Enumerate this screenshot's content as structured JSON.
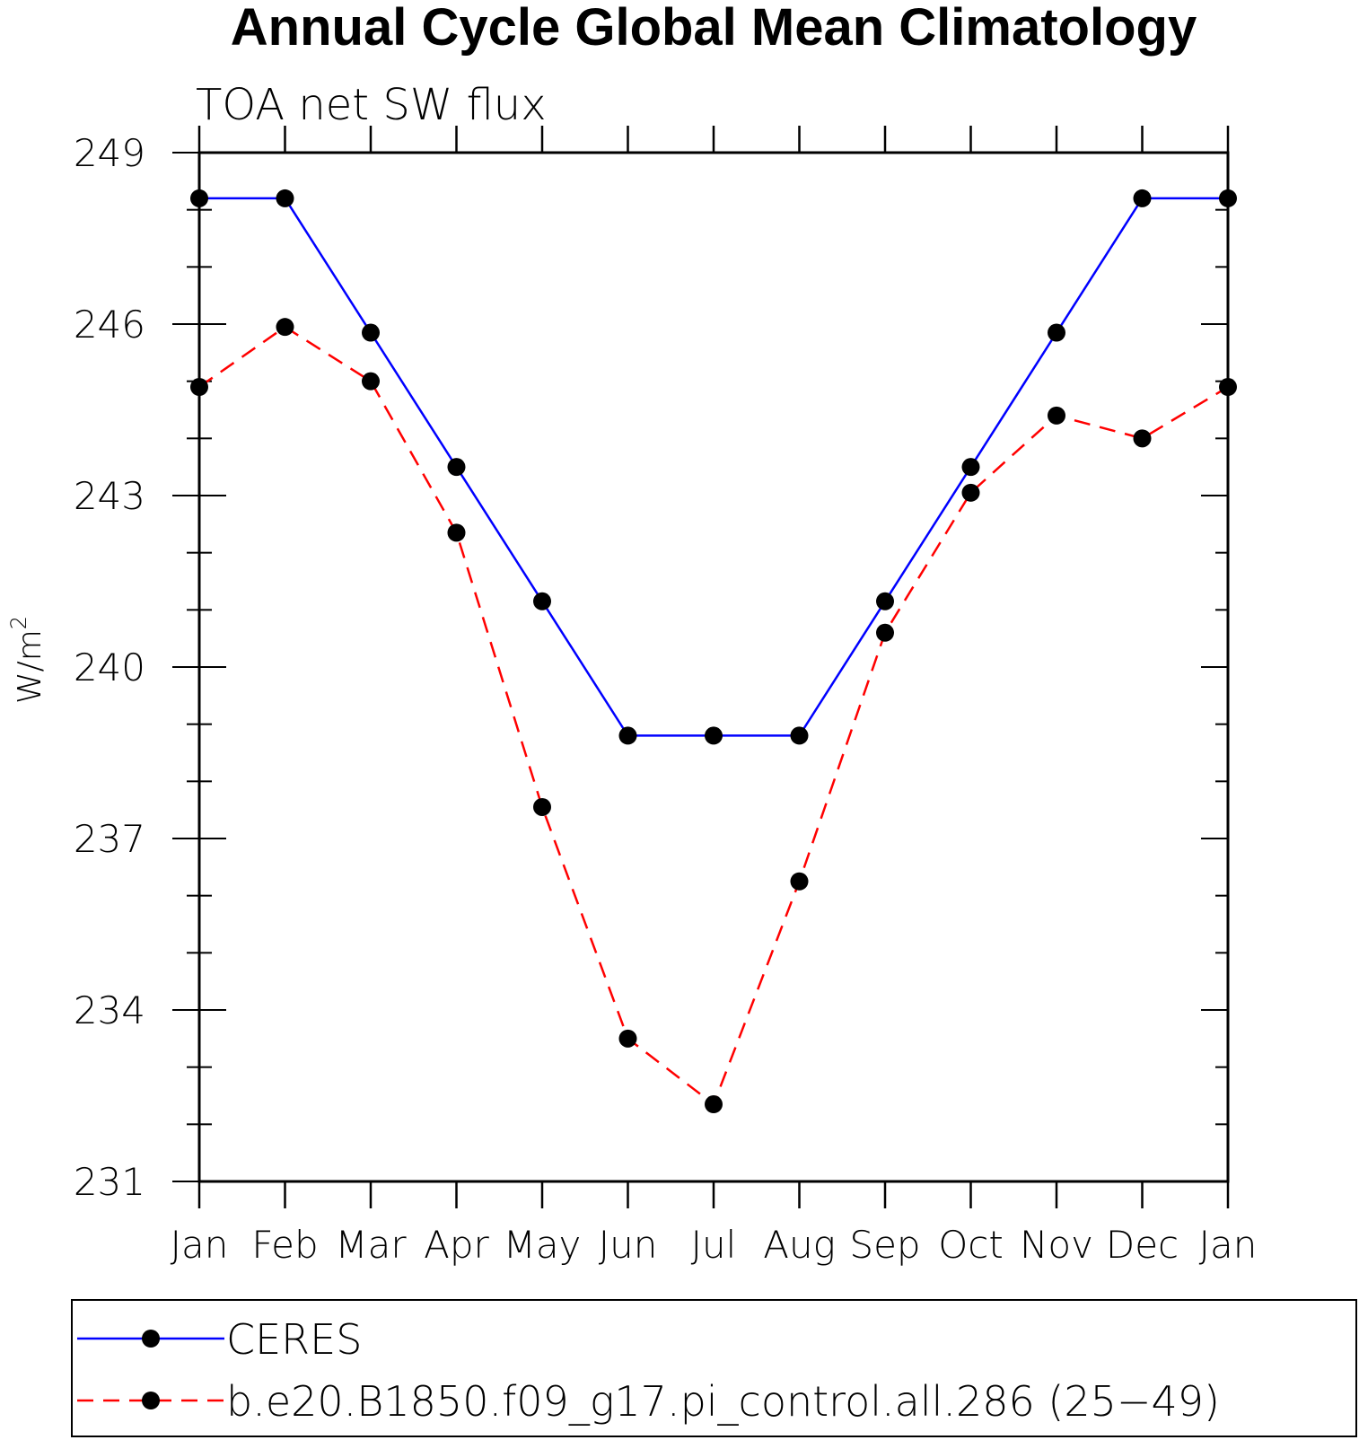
{
  "chart_data": {
    "type": "line",
    "title": "Annual Cycle Global Mean Climatology",
    "subtitle": "TOA net SW flux",
    "ylabel": "W/m",
    "ylabel_superscript": "2",
    "xlabel": "",
    "categories": [
      "Jan",
      "Feb",
      "Mar",
      "Apr",
      "May",
      "Jun",
      "Jul",
      "Aug",
      "Sep",
      "Oct",
      "Nov",
      "Dec",
      "Jan"
    ],
    "ylim": [
      231,
      249
    ],
    "yticks": [
      "231",
      "234",
      "237",
      "240",
      "243",
      "246",
      "249"
    ],
    "grid": false,
    "legend_position": "bottom",
    "series": [
      {
        "name": "CERES",
        "color": "#0000ff",
        "style": "solid",
        "marker": "filled-circle",
        "values": [
          248.2,
          248.2,
          245.85,
          243.5,
          241.15,
          238.8,
          238.8,
          238.8,
          241.15,
          243.5,
          245.85,
          248.2,
          248.2
        ]
      },
      {
        "name": "b.e20.B1850.f09_g17.pi_control.all.286 (25−49)",
        "color": "#ff0000",
        "style": "dashed",
        "marker": "filled-circle",
        "values": [
          244.9,
          245.95,
          245.0,
          242.35,
          237.55,
          233.5,
          232.35,
          236.25,
          240.6,
          243.05,
          244.4,
          244.0,
          244.9
        ]
      }
    ]
  }
}
